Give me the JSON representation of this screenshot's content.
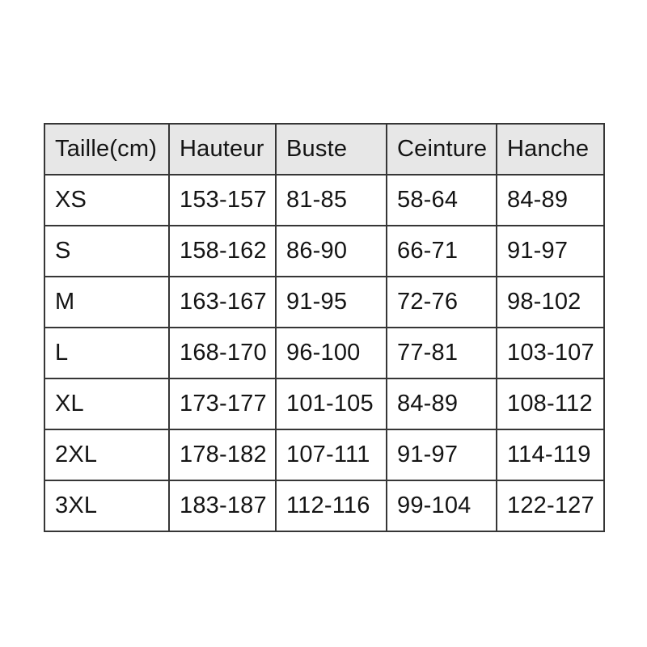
{
  "page": {
    "background": "#ffffff"
  },
  "chart_data": {
    "type": "table",
    "headers": [
      "Taille(cm)",
      "Hauteur",
      "Buste",
      "Ceinture",
      "Hanche"
    ],
    "rows": [
      [
        "XS",
        "153-157",
        "81-85",
        "58-64",
        "84-89"
      ],
      [
        "S",
        "158-162",
        "86-90",
        "66-71",
        "91-97"
      ],
      [
        "M",
        "163-167",
        "91-95",
        "72-76",
        "98-102"
      ],
      [
        "L",
        "168-170",
        "96-100",
        "77-81",
        "103-107"
      ],
      [
        "XL",
        "173-177",
        "101-105",
        "84-89",
        "108-112"
      ],
      [
        "2XL",
        "178-182",
        "107-111",
        "91-97",
        "114-119"
      ],
      [
        "3XL",
        "183-187",
        "112-116",
        "99-104",
        "122-127"
      ]
    ],
    "layout": {
      "header_bg": "#e7e7e7",
      "border_color": "#363636",
      "text_color": "#141414",
      "grid": "on",
      "legend": "none"
    }
  }
}
